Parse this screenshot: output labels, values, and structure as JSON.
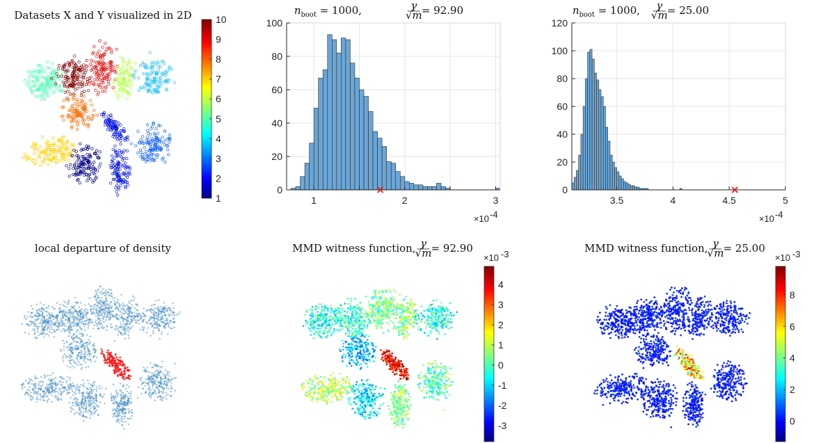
{
  "chart_data": [
    {
      "panel": "top-left",
      "type": "scatter",
      "title": "Datasets X and Y visualized in 2D",
      "colorbar": {
        "min": 1,
        "max": 10,
        "ticks": [
          "1",
          "2",
          "3",
          "4",
          "5",
          "6",
          "7",
          "8",
          "9",
          "10"
        ],
        "colormap": "jet"
      },
      "clusters": [
        {
          "label": 10,
          "cx": 0.32,
          "cy": 0.3,
          "color": "#7f0000"
        },
        {
          "label": 9,
          "cx": 0.5,
          "cy": 0.28,
          "color": "#e01010"
        },
        {
          "label": 8,
          "cx": 0.38,
          "cy": 0.48,
          "color": "#ff6a00"
        },
        {
          "label": 7,
          "cx": 0.28,
          "cy": 0.72,
          "color": "#ffd000"
        },
        {
          "label": 6,
          "cx": 0.62,
          "cy": 0.3,
          "color": "#b0ff40"
        },
        {
          "label": 5,
          "cx": 0.18,
          "cy": 0.3,
          "color": "#40ffb0"
        },
        {
          "label": 4,
          "cx": 0.78,
          "cy": 0.32,
          "color": "#20c0ff"
        },
        {
          "label": 3,
          "cx": 0.72,
          "cy": 0.68,
          "color": "#1060ff"
        },
        {
          "label": 2,
          "cx": 0.55,
          "cy": 0.7,
          "color": "#0010e0"
        },
        {
          "label": 1,
          "cx": 0.4,
          "cy": 0.78,
          "color": "#000080"
        }
      ]
    },
    {
      "panel": "top-middle",
      "type": "bar",
      "title_prefix": "n",
      "title_sub": "boot",
      "title_eq1": " = 1000,",
      "title_frac_num": "γ",
      "title_frac_den": "√m",
      "title_eq2": " = 92.90",
      "x_exponent": "×10",
      "x_exponent_power": "-4",
      "xlim": [
        0.7,
        3.05
      ],
      "ylim": [
        0,
        100
      ],
      "xticks": [
        1,
        1.5,
        2,
        2.5,
        3
      ],
      "xtick_labels": [
        "1",
        "",
        "2",
        "",
        "3"
      ],
      "yticks": [
        0,
        20,
        40,
        60,
        80,
        100
      ],
      "bin_width": 0.05,
      "bin_start": 0.75,
      "values": [
        1,
        2,
        8,
        16,
        28,
        49,
        67,
        72,
        93,
        90,
        82,
        91,
        90,
        76,
        67,
        60,
        56,
        47,
        35,
        31,
        26,
        17,
        16,
        11,
        8,
        5,
        4,
        3,
        3,
        2,
        2,
        2,
        4,
        2,
        1,
        0,
        0,
        0,
        0,
        0,
        0,
        0,
        0,
        0,
        0,
        1
      ],
      "stat_marker": 1.73
    },
    {
      "panel": "top-right",
      "type": "bar",
      "title_prefix": "n",
      "title_sub": "boot",
      "title_eq1": " = 1000,",
      "title_frac_num": "γ",
      "title_frac_den": "√m",
      "title_eq2": " = 25.00",
      "x_exponent": "×10",
      "x_exponent_power": "-4",
      "xlim": [
        3.1,
        5.0
      ],
      "ylim": [
        0,
        120
      ],
      "xticks": [
        3.5,
        4,
        4.5,
        5
      ],
      "xtick_labels": [
        "3.5",
        "4",
        "4.5",
        "5"
      ],
      "yticks": [
        0,
        20,
        40,
        60,
        80,
        100,
        120
      ],
      "bin_width": 0.02,
      "bin_start": 3.1,
      "values": [
        5,
        9,
        14,
        25,
        40,
        60,
        80,
        99,
        101,
        94,
        84,
        79,
        72,
        67,
        60,
        45,
        35,
        25,
        20,
        16,
        13,
        10,
        8,
        6,
        5,
        4,
        3,
        3,
        2,
        2,
        1,
        1,
        1,
        1,
        0,
        0,
        0,
        0,
        0,
        0,
        0,
        0,
        0,
        0,
        0,
        0,
        0,
        0,
        1
      ],
      "stat_marker": 4.55
    },
    {
      "panel": "bottom-left",
      "type": "scatter",
      "title": "local departure of density"
    },
    {
      "panel": "bottom-middle",
      "type": "scatter",
      "title": "MMD witness function,",
      "title_frac_num": "γ",
      "title_frac_den": "√m",
      "title_eq": " = 92.90",
      "colorbar": {
        "exponent": "×10",
        "exponent_power": "-3",
        "ticks": [
          "4",
          "3",
          "2",
          "1",
          "0",
          "-1",
          "-2",
          "-3"
        ],
        "min": -3.8,
        "max": 4.9,
        "colormap": "jet"
      }
    },
    {
      "panel": "bottom-right",
      "type": "scatter",
      "title": "MMD witness function,",
      "title_frac_num": "γ",
      "title_frac_den": "√m",
      "title_eq": " = 25.00",
      "colorbar": {
        "exponent": "×10",
        "exponent_power": "-3",
        "ticks": [
          "8",
          "6",
          "4",
          "2",
          "0"
        ],
        "min": -1.3,
        "max": 9.8,
        "colormap": "jet"
      }
    }
  ],
  "colors": {
    "hist_fill": "#6aa6d6",
    "hist_edge": "#2a2a2a",
    "marker": "#e02020",
    "density_point": "#3a85bf",
    "density_hot": "#ff1a1a"
  }
}
